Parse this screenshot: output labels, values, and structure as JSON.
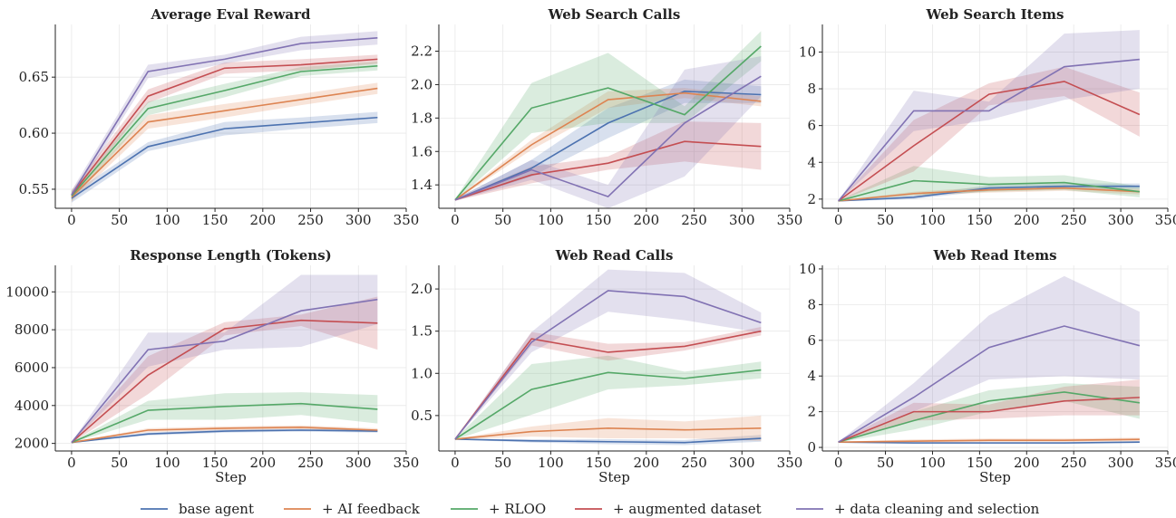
{
  "colors": {
    "base agent": "#4c72b0",
    "+ AI feedback": "#dd8452",
    "+ RLOO": "#55a868",
    "+ augmented dataset": "#c44e52",
    "+ data cleaning and selection": "#8172b3"
  },
  "legend": [
    "base agent",
    "+ AI feedback",
    "+ RLOO",
    "+ augmented dataset",
    "+ data cleaning and selection"
  ],
  "chart_data": [
    {
      "type": "line",
      "title": "Average Eval Reward",
      "xlabel": "",
      "xlim": [
        -17,
        350
      ],
      "xticks": [
        0,
        50,
        100,
        150,
        200,
        250,
        300,
        350
      ],
      "ylim": [
        0.533,
        0.697
      ],
      "yticks": [
        0.55,
        0.6,
        0.65
      ],
      "ytick_labels": [
        "0.55",
        "0.60",
        "0.65"
      ],
      "x": [
        0,
        80,
        160,
        240,
        320
      ],
      "series": [
        {
          "name": "base agent",
          "values": [
            0.542,
            0.588,
            0.604,
            0.609,
            0.614
          ],
          "band": [
            0.004,
            0.004,
            0.006,
            0.005,
            0.005
          ]
        },
        {
          "name": "+ AI feedback",
          "values": [
            0.543,
            0.61,
            0.62,
            0.63,
            0.64
          ],
          "band": [
            0.004,
            0.006,
            0.006,
            0.005,
            0.005
          ]
        },
        {
          "name": "+ RLOO",
          "values": [
            0.544,
            0.622,
            0.638,
            0.655,
            0.66
          ],
          "band": [
            0.004,
            0.006,
            0.006,
            0.004,
            0.004
          ]
        },
        {
          "name": "+ augmented dataset",
          "values": [
            0.545,
            0.633,
            0.658,
            0.661,
            0.666
          ],
          "band": [
            0.004,
            0.006,
            0.005,
            0.005,
            0.004
          ]
        },
        {
          "name": "+ data cleaning and selection",
          "values": [
            0.545,
            0.655,
            0.666,
            0.68,
            0.685
          ],
          "band": [
            0.004,
            0.006,
            0.004,
            0.006,
            0.006
          ]
        }
      ]
    },
    {
      "type": "line",
      "title": "Web Search Calls",
      "xlabel": "",
      "xlim": [
        -17,
        350
      ],
      "xticks": [
        0,
        50,
        100,
        150,
        200,
        250,
        300,
        350
      ],
      "ylim": [
        1.26,
        2.36
      ],
      "yticks": [
        1.4,
        1.6,
        1.8,
        2.0,
        2.2
      ],
      "ytick_labels": [
        "1.4",
        "1.6",
        "1.8",
        "2.0",
        "2.2"
      ],
      "x": [
        0,
        80,
        160,
        240,
        320
      ],
      "series": [
        {
          "name": "base agent",
          "values": [
            1.31,
            1.5,
            1.77,
            1.96,
            1.94
          ],
          "band": [
            0.005,
            0.05,
            0.09,
            0.07,
            0.05
          ]
        },
        {
          "name": "+ AI feedback",
          "values": [
            1.31,
            1.64,
            1.91,
            1.95,
            1.9
          ],
          "band": [
            0.005,
            0.03,
            0.05,
            0.03,
            0.03
          ]
        },
        {
          "name": "+ RLOO",
          "values": [
            1.31,
            1.86,
            1.98,
            1.82,
            2.23
          ],
          "band": [
            0.005,
            0.15,
            0.21,
            0.05,
            0.09
          ]
        },
        {
          "name": "+ augmented dataset",
          "values": [
            1.31,
            1.46,
            1.53,
            1.66,
            1.63
          ],
          "band": [
            0.005,
            0.05,
            0.04,
            0.12,
            0.14
          ]
        },
        {
          "name": "+ data cleaning and selection",
          "values": [
            1.31,
            1.49,
            1.33,
            1.77,
            2.05
          ],
          "band": [
            0.005,
            0.06,
            0.07,
            0.32,
            0.12
          ]
        }
      ]
    },
    {
      "type": "line",
      "title": "Web Search Items",
      "xlabel": "",
      "xlim": [
        -17,
        350
      ],
      "xticks": [
        0,
        50,
        100,
        150,
        200,
        250,
        300,
        350
      ],
      "ylim": [
        1.5,
        11.5
      ],
      "yticks": [
        2,
        4,
        6,
        8,
        10
      ],
      "ytick_labels": [
        "2",
        "4",
        "6",
        "8",
        "10"
      ],
      "x": [
        0,
        80,
        160,
        240,
        320
      ],
      "series": [
        {
          "name": "base agent",
          "values": [
            1.9,
            2.1,
            2.6,
            2.7,
            2.7
          ],
          "band": [
            0.02,
            0.1,
            0.15,
            0.15,
            0.15
          ]
        },
        {
          "name": "+ AI feedback",
          "values": [
            1.9,
            2.3,
            2.5,
            2.6,
            2.4
          ],
          "band": [
            0.02,
            0.1,
            0.15,
            0.15,
            0.15
          ]
        },
        {
          "name": "+ RLOO",
          "values": [
            1.9,
            3.0,
            2.8,
            2.9,
            2.4
          ],
          "band": [
            0.02,
            0.8,
            0.4,
            0.4,
            0.3
          ]
        },
        {
          "name": "+ augmented dataset",
          "values": [
            1.9,
            4.9,
            7.7,
            8.4,
            6.6
          ],
          "band": [
            0.02,
            1.4,
            0.6,
            0.8,
            1.2
          ]
        },
        {
          "name": "+ data cleaning and selection",
          "values": [
            1.9,
            6.8,
            6.8,
            9.2,
            9.6
          ],
          "band": [
            0.02,
            1.1,
            0.5,
            1.8,
            1.6
          ]
        }
      ]
    },
    {
      "type": "line",
      "title": "Response Length (Tokens)",
      "xlabel": "Step",
      "xlim": [
        -17,
        350
      ],
      "xticks": [
        0,
        50,
        100,
        150,
        200,
        250,
        300,
        350
      ],
      "ylim": [
        1600,
        11400
      ],
      "yticks": [
        2000,
        4000,
        6000,
        8000,
        10000
      ],
      "ytick_labels": [
        "2000",
        "4000",
        "6000",
        "8000",
        "10000"
      ],
      "x": [
        0,
        80,
        160,
        240,
        320
      ],
      "series": [
        {
          "name": "base agent",
          "values": [
            2050,
            2500,
            2650,
            2700,
            2650
          ],
          "band": [
            20,
            80,
            80,
            80,
            80
          ]
        },
        {
          "name": "+ AI feedback",
          "values": [
            2050,
            2700,
            2800,
            2850,
            2700
          ],
          "band": [
            20,
            100,
            100,
            100,
            100
          ]
        },
        {
          "name": "+ RLOO",
          "values": [
            2050,
            3750,
            3950,
            4100,
            3800
          ],
          "band": [
            20,
            500,
            700,
            600,
            750
          ]
        },
        {
          "name": "+ augmented dataset",
          "values": [
            2050,
            5600,
            8050,
            8500,
            8350
          ],
          "band": [
            20,
            1000,
            350,
            300,
            1400
          ]
        },
        {
          "name": "+ data cleaning and selection",
          "values": [
            2050,
            6950,
            7400,
            9000,
            9600
          ],
          "band": [
            20,
            900,
            450,
            1900,
            1300
          ]
        }
      ]
    },
    {
      "type": "line",
      "title": "Web Read Calls",
      "xlabel": "Step",
      "xlim": [
        -17,
        350
      ],
      "xticks": [
        0,
        50,
        100,
        150,
        200,
        250,
        300,
        350
      ],
      "ylim": [
        0.08,
        2.28
      ],
      "yticks": [
        0.5,
        1.0,
        1.5,
        2.0
      ],
      "ytick_labels": [
        "0.5",
        "1.0",
        "1.5",
        "2.0"
      ],
      "x": [
        0,
        80,
        160,
        240,
        320
      ],
      "series": [
        {
          "name": "base agent",
          "values": [
            0.22,
            0.2,
            0.19,
            0.18,
            0.23
          ],
          "band": [
            0.005,
            0.02,
            0.03,
            0.03,
            0.04
          ]
        },
        {
          "name": "+ AI feedback",
          "values": [
            0.22,
            0.31,
            0.35,
            0.33,
            0.35
          ],
          "band": [
            0.005,
            0.06,
            0.12,
            0.1,
            0.15
          ]
        },
        {
          "name": "+ RLOO",
          "values": [
            0.22,
            0.81,
            1.01,
            0.94,
            1.04
          ],
          "band": [
            0.005,
            0.3,
            0.2,
            0.08,
            0.1
          ]
        },
        {
          "name": "+ augmented dataset",
          "values": [
            0.22,
            1.41,
            1.25,
            1.32,
            1.5
          ],
          "band": [
            0.005,
            0.08,
            0.1,
            0.05,
            0.05
          ]
        },
        {
          "name": "+ data cleaning and selection",
          "values": [
            0.22,
            1.37,
            1.98,
            1.91,
            1.6
          ],
          "band": [
            0.005,
            0.12,
            0.25,
            0.28,
            0.12
          ]
        }
      ]
    },
    {
      "type": "line",
      "title": "Web Read Items",
      "xlabel": "Step",
      "xlim": [
        -17,
        350
      ],
      "xticks": [
        0,
        50,
        100,
        150,
        200,
        250,
        300,
        350
      ],
      "ylim": [
        -0.2,
        10.2
      ],
      "yticks": [
        0,
        2,
        4,
        6,
        8,
        10
      ],
      "ytick_labels": [
        "0",
        "2",
        "4",
        "6",
        "8",
        "10"
      ],
      "x": [
        0,
        80,
        160,
        240,
        320
      ],
      "series": [
        {
          "name": "base agent",
          "values": [
            0.3,
            0.25,
            0.25,
            0.25,
            0.3
          ],
          "band": [
            0.02,
            0.05,
            0.05,
            0.05,
            0.05
          ]
        },
        {
          "name": "+ AI feedback",
          "values": [
            0.3,
            0.35,
            0.4,
            0.4,
            0.45
          ],
          "band": [
            0.02,
            0.1,
            0.1,
            0.1,
            0.1
          ]
        },
        {
          "name": "+ RLOO",
          "values": [
            0.3,
            1.5,
            2.6,
            3.1,
            2.5
          ],
          "band": [
            0.02,
            0.5,
            0.6,
            0.5,
            0.9
          ]
        },
        {
          "name": "+ augmented dataset",
          "values": [
            0.3,
            2.0,
            2.0,
            2.6,
            2.8
          ],
          "band": [
            0.02,
            0.5,
            0.4,
            0.8,
            1.0
          ]
        },
        {
          "name": "+ data cleaning and selection",
          "values": [
            0.3,
            2.8,
            5.6,
            6.8,
            5.7
          ],
          "band": [
            0.02,
            0.8,
            1.8,
            2.8,
            1.9
          ]
        }
      ]
    }
  ]
}
